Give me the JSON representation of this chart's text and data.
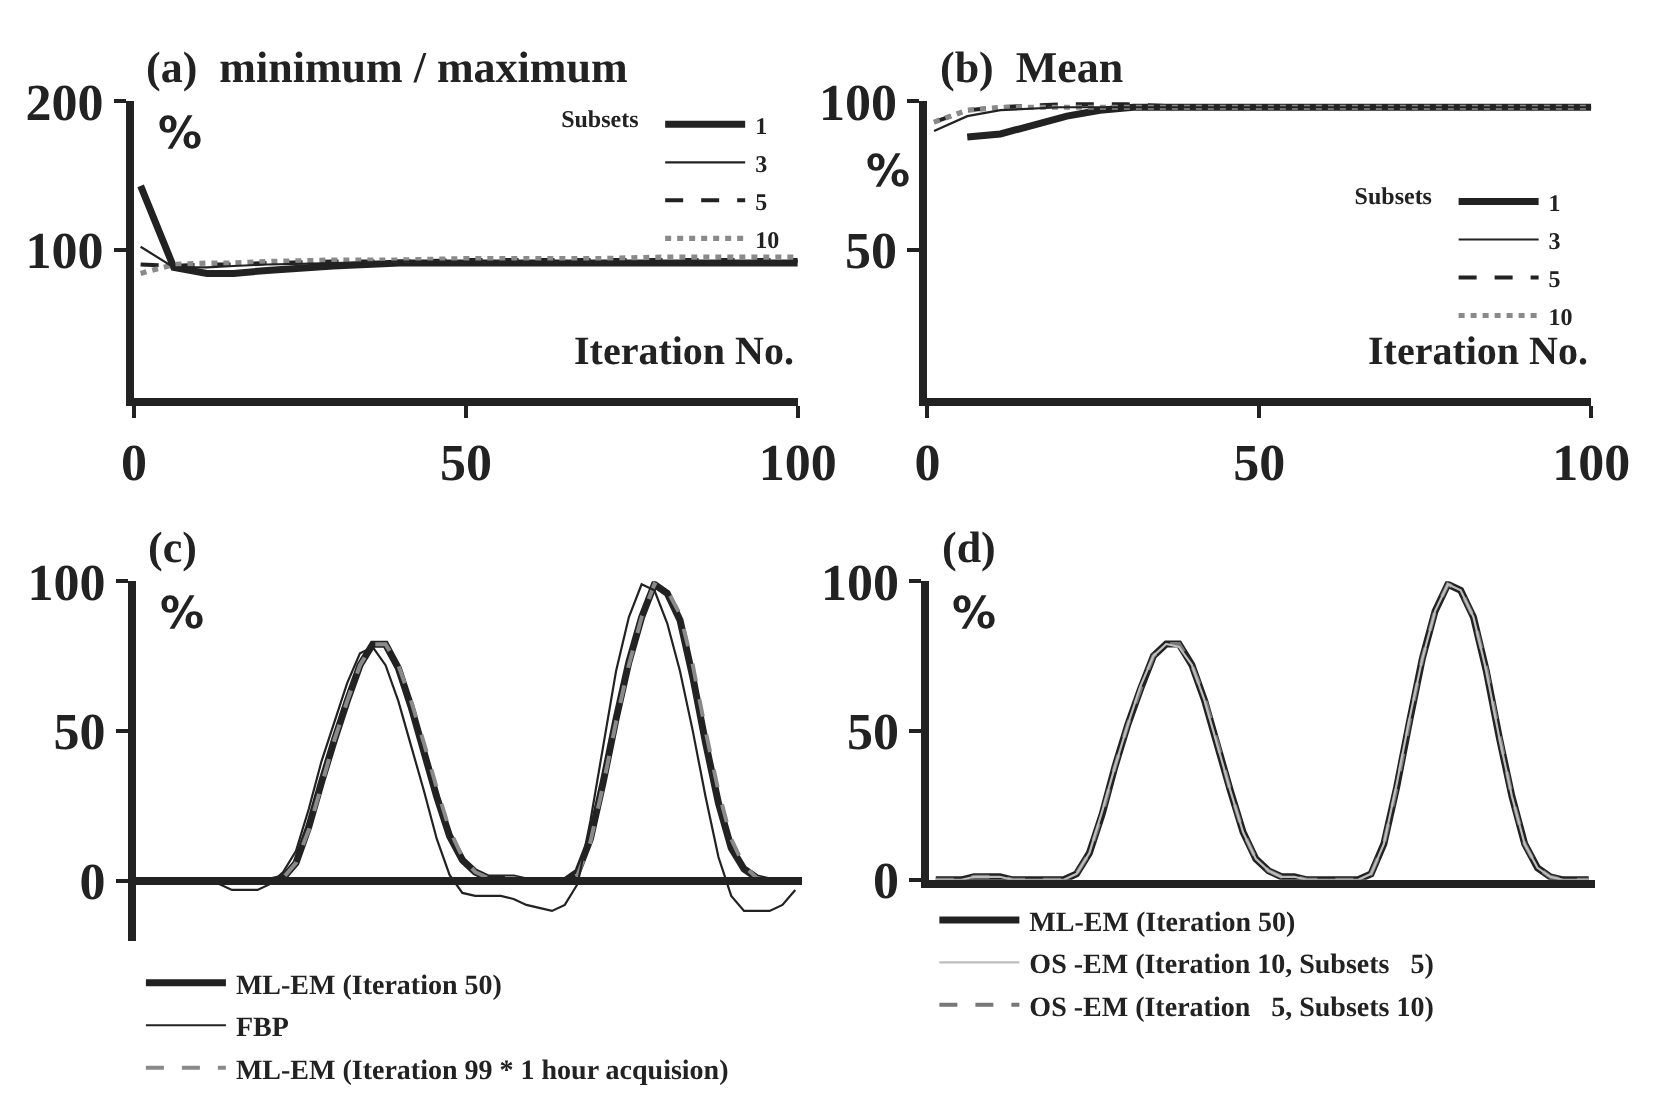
{
  "chart_data": [
    {
      "type": "line",
      "title": "(a)  minimum / maximum",
      "xlabel": "Iteration No.",
      "ylabel": "%",
      "legend_title": "Subsets",
      "legend": "top right",
      "xlim": [
        0,
        100
      ],
      "xticks": [
        0,
        50,
        100
      ],
      "ylim": [
        0,
        200
      ],
      "yticks": [
        100,
        200
      ],
      "series": [
        {
          "name": "1",
          "color": "#222222",
          "line_style": "solid",
          "x": [
            1,
            6,
            11,
            15,
            20,
            30,
            40,
            50,
            60,
            70,
            80,
            90,
            100
          ],
          "values": [
            143,
            88,
            84,
            84,
            86,
            89,
            91,
            91,
            91,
            91,
            91,
            91,
            91
          ]
        },
        {
          "name": "3",
          "color": "#222222",
          "line_style": "solid",
          "x": [
            1,
            6,
            11,
            15,
            20,
            30,
            40,
            50,
            60,
            70,
            80,
            90,
            100
          ],
          "values": [
            102,
            88,
            88,
            89,
            90,
            91,
            92,
            92,
            92,
            92,
            92,
            92,
            92
          ]
        },
        {
          "name": "5",
          "color": "#222222",
          "line_style": "dashed",
          "x": [
            1,
            6,
            11,
            15,
            20,
            30,
            40,
            50,
            60,
            70,
            80,
            90,
            100
          ],
          "values": [
            90,
            89,
            90,
            90,
            91,
            92,
            92,
            93,
            93,
            93,
            93,
            93,
            93
          ]
        },
        {
          "name": "10",
          "color": "#8a8a8a",
          "line_style": "dotted",
          "x": [
            1,
            6,
            11,
            15,
            20,
            30,
            40,
            50,
            60,
            70,
            80,
            90,
            100
          ],
          "values": [
            84,
            90,
            91,
            91,
            92,
            93,
            93,
            94,
            94,
            94,
            95,
            95,
            95
          ]
        }
      ]
    },
    {
      "type": "line",
      "title": "(b)  Mean",
      "xlabel": "Iteration No.",
      "ylabel": "%",
      "legend_title": "Subsets",
      "legend": "right",
      "xlim": [
        0,
        100
      ],
      "xticks": [
        0,
        50,
        100
      ],
      "ylim": [
        0,
        100
      ],
      "yticks": [
        50,
        100
      ],
      "series": [
        {
          "name": "1",
          "color": "#222222",
          "line_style": "solid",
          "x": [
            6,
            11,
            16,
            21,
            26,
            31,
            40,
            50,
            60,
            70,
            80,
            90,
            100
          ],
          "values": [
            88,
            89,
            92,
            95,
            97,
            98,
            98,
            98,
            98,
            98,
            98,
            98,
            98
          ]
        },
        {
          "name": "3",
          "color": "#222222",
          "line_style": "solid",
          "x": [
            1,
            6,
            11,
            20,
            30,
            40,
            50,
            60,
            70,
            80,
            90,
            100
          ],
          "values": [
            90,
            95,
            97,
            98,
            98,
            98,
            98,
            98,
            98,
            98,
            98,
            98
          ]
        },
        {
          "name": "5",
          "color": "#222222",
          "line_style": "dashed",
          "x": [
            1,
            6,
            11,
            20,
            30,
            40,
            50,
            60,
            70,
            80,
            90,
            100
          ],
          "values": [
            93,
            97,
            98,
            99,
            99,
            98,
            98,
            98,
            98,
            98,
            98,
            98
          ]
        },
        {
          "name": "10",
          "color": "#8a8a8a",
          "line_style": "dotted",
          "x": [
            1,
            6,
            11,
            20,
            30,
            40,
            50,
            60,
            70,
            80,
            90,
            100
          ],
          "values": [
            93,
            97,
            98,
            98,
            98,
            98,
            98,
            98,
            98,
            98,
            98,
            98
          ]
        }
      ]
    },
    {
      "type": "line",
      "title": "(c)",
      "ylabel": "%",
      "legend": "bottom left",
      "ref_lines": [
        {
          "axis": "y",
          "value": 0
        }
      ],
      "tick_labels": "y",
      "ylim": [
        -20,
        100
      ],
      "yticks": [
        0,
        50,
        100
      ],
      "categories": [
        null,
        null,
        null,
        null,
        null,
        null,
        null,
        null,
        null,
        null,
        null,
        null,
        null,
        null,
        null,
        null,
        null,
        null,
        null,
        null,
        null,
        null,
        null,
        null,
        null,
        null,
        null,
        null,
        null,
        null,
        null,
        null,
        null,
        null,
        null,
        null,
        null,
        null,
        null,
        null,
        null,
        null,
        null,
        null,
        null,
        null,
        null,
        null,
        null,
        null,
        null,
        null
      ],
      "series": [
        {
          "name": "ML-EM (Iteration 50)",
          "color": "#222222",
          "line_style": "solid",
          "values": [
            0,
            0,
            0,
            0,
            0,
            0,
            0,
            0,
            0,
            0,
            0,
            1,
            6,
            18,
            33,
            47,
            60,
            72,
            79,
            79,
            71,
            58,
            43,
            28,
            15,
            7,
            3,
            1,
            1,
            1,
            0,
            0,
            0,
            0,
            3,
            14,
            33,
            54,
            73,
            88,
            99,
            96,
            87,
            68,
            46,
            26,
            11,
            4,
            1,
            0,
            0,
            0
          ]
        },
        {
          "name": "FBP",
          "color": "#222222",
          "line_style": "solid",
          "values": [
            0,
            0,
            0,
            0,
            0,
            0,
            -1,
            -3,
            -3,
            -3,
            -1,
            3,
            10,
            24,
            40,
            53,
            66,
            76,
            78,
            72,
            60,
            45,
            30,
            14,
            2,
            -4,
            -5,
            -5,
            -5,
            -6,
            -8,
            -9,
            -10,
            -8,
            -1,
            20,
            45,
            70,
            88,
            99,
            97,
            86,
            70,
            50,
            28,
            8,
            -5,
            -10,
            -10,
            -10,
            -8,
            -3
          ]
        },
        {
          "name": "ML-EM (Iteration 99 * 1 hour acquision)",
          "color": "#8a8a8a",
          "line_style": "dashed",
          "values": [
            0,
            0,
            0,
            0,
            0,
            0,
            0,
            0,
            0,
            0,
            0,
            1,
            6,
            17,
            32,
            47,
            60,
            72,
            79,
            79,
            72,
            60,
            46,
            31,
            17,
            8,
            3,
            1,
            1,
            1,
            0,
            0,
            0,
            0,
            2,
            13,
            32,
            53,
            72,
            88,
            99,
            97,
            89,
            72,
            50,
            30,
            14,
            5,
            1,
            0,
            0,
            0
          ]
        }
      ]
    },
    {
      "type": "line",
      "title": "(d)",
      "ylabel": "%",
      "legend": "bottom left",
      "tick_labels": "y",
      "ylim": [
        0,
        100
      ],
      "yticks": [
        0,
        50,
        100
      ],
      "categories": [
        null,
        null,
        null,
        null,
        null,
        null,
        null,
        null,
        null,
        null,
        null,
        null,
        null,
        null,
        null,
        null,
        null,
        null,
        null,
        null,
        null,
        null,
        null,
        null,
        null,
        null,
        null,
        null,
        null,
        null,
        null,
        null,
        null,
        null,
        null,
        null,
        null,
        null,
        null,
        null,
        null,
        null,
        null,
        null,
        null,
        null,
        null,
        null,
        null,
        null,
        null,
        null
      ],
      "series": [
        {
          "name": "ML-EM (Iteration 50)",
          "color": "#222222",
          "line_style": "solid",
          "values": [
            0,
            0,
            0,
            1,
            1,
            1,
            0,
            0,
            0,
            0,
            0,
            2,
            9,
            22,
            38,
            52,
            64,
            75,
            79,
            79,
            72,
            60,
            45,
            30,
            16,
            7,
            3,
            1,
            1,
            0,
            0,
            0,
            0,
            0,
            2,
            12,
            31,
            53,
            74,
            90,
            99,
            97,
            88,
            70,
            48,
            28,
            12,
            4,
            1,
            0,
            0,
            0
          ]
        },
        {
          "name": "OS -EM (Iteration 10, Subsets   5)",
          "color": "#bdbdbd",
          "line_style": "solid",
          "values": [
            0,
            0,
            0,
            1,
            1,
            1,
            0,
            0,
            0,
            0,
            0,
            2,
            9,
            23,
            38,
            52,
            65,
            75,
            79,
            78,
            72,
            60,
            45,
            30,
            16,
            7,
            3,
            1,
            1,
            0,
            0,
            0,
            0,
            0,
            2,
            12,
            32,
            54,
            74,
            90,
            99,
            97,
            88,
            70,
            48,
            28,
            12,
            4,
            1,
            0,
            0,
            0
          ]
        },
        {
          "name": "OS -EM (Iteration   5, Subsets 10)",
          "color": "#777777",
          "line_style": "dashed",
          "values": [
            0,
            0,
            0,
            1,
            1,
            1,
            0,
            0,
            0,
            0,
            0,
            2,
            9,
            22,
            38,
            52,
            64,
            75,
            79,
            79,
            72,
            61,
            46,
            30,
            16,
            7,
            3,
            1,
            1,
            0,
            0,
            0,
            0,
            0,
            2,
            12,
            31,
            53,
            74,
            90,
            99,
            97,
            88,
            71,
            49,
            28,
            12,
            4,
            1,
            0,
            0,
            0
          ]
        }
      ]
    }
  ]
}
